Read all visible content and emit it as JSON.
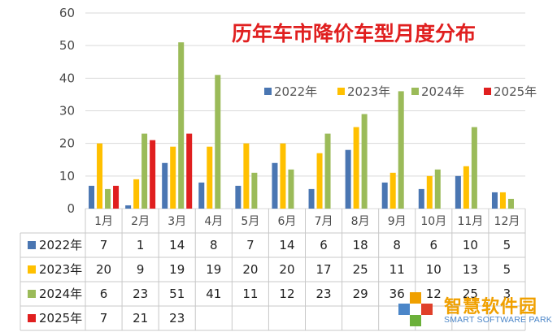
{
  "chart_data": {
    "type": "bar",
    "title": "历年车市降价车型月度分布",
    "categories": [
      "1月",
      "2月",
      "3月",
      "4月",
      "5月",
      "6月",
      "7月",
      "8月",
      "9月",
      "10月",
      "11月",
      "12月"
    ],
    "ylim": [
      0,
      60
    ],
    "yticks": [
      0,
      10,
      20,
      30,
      40,
      50,
      60
    ],
    "grid": true,
    "legend_position": "top-right",
    "series": [
      {
        "name": "2022年",
        "color": "#4a76b2",
        "values": [
          7,
          1,
          14,
          8,
          7,
          14,
          6,
          18,
          8,
          6,
          10,
          5
        ]
      },
      {
        "name": "2023年",
        "color": "#ffc000",
        "values": [
          20,
          9,
          19,
          19,
          20,
          20,
          17,
          25,
          11,
          10,
          13,
          5
        ]
      },
      {
        "name": "2024年",
        "color": "#9bbb59",
        "values": [
          6,
          23,
          51,
          41,
          11,
          12,
          23,
          29,
          36,
          12,
          25,
          3
        ]
      },
      {
        "name": "2025年",
        "color": "#e01f1f",
        "values": [
          7,
          21,
          23,
          null,
          null,
          null,
          null,
          null,
          null,
          null,
          null,
          null
        ]
      }
    ],
    "data_table": true
  },
  "watermark": {
    "text_cn": "智慧软件园",
    "text_en": "SMART SOFTWARE PARK"
  }
}
